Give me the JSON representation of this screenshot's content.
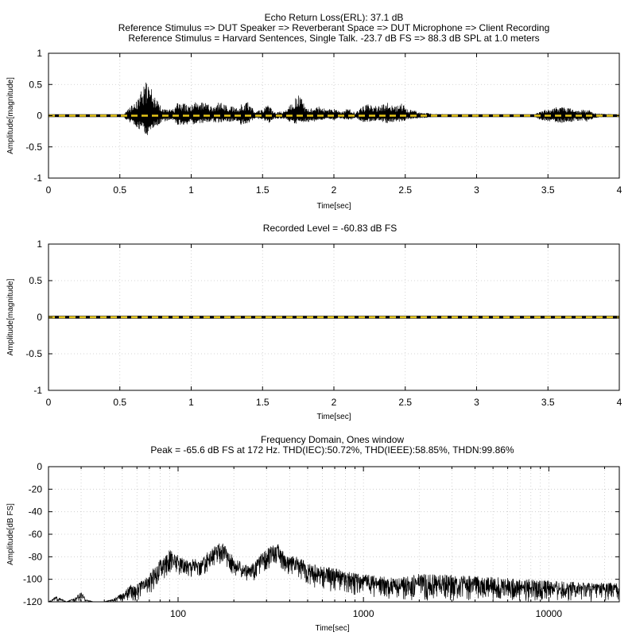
{
  "chart_data": [
    {
      "type": "line",
      "titles": [
        "Echo Return Loss(ERL): 37.1 dB",
        "Reference Stimulus => DUT Speaker => Reverberant Space => DUT Microphone => Client Recording",
        "Reference Stimulus = Harvard Sentences, Single Talk. -23.7 dB FS => 88.3 dB SPL at 1.0 meters"
      ],
      "xlabel": "Time[sec]",
      "ylabel": "Amplitude[magnitude]",
      "xlim": [
        0,
        4
      ],
      "ylim": [
        -1,
        1
      ],
      "xticks": [
        0,
        0.5,
        1,
        1.5,
        2,
        2.5,
        3,
        3.5,
        4
      ],
      "xtick_labels": [
        "0",
        "0.5",
        "1",
        "1.5",
        "2",
        "2.5",
        "3",
        "3.5",
        "4"
      ],
      "yticks": [
        1,
        0.5,
        0,
        -0.5,
        -1
      ],
      "ytick_labels": [
        "1",
        "0.5",
        "0",
        "-0.5",
        "-1"
      ],
      "grid": true,
      "series": [
        {
          "color": "#000000",
          "style": "waveform",
          "envelope": {
            "t": [
              0.0,
              0.52,
              0.55,
              0.62,
              0.66,
              0.7,
              0.74,
              0.8,
              0.84,
              0.88,
              0.9,
              0.95,
              1.0,
              1.02,
              1.05,
              1.1,
              1.14,
              1.2,
              1.27,
              1.32,
              1.35,
              1.4,
              1.45,
              1.5,
              1.54,
              1.58,
              1.65,
              1.7,
              1.76,
              1.8,
              1.86,
              1.9,
              1.95,
              2.0,
              2.05,
              2.1,
              2.15,
              2.2,
              2.25,
              2.3,
              2.37,
              2.42,
              2.48,
              2.52,
              2.58,
              2.62,
              2.7,
              2.8,
              2.85,
              3.38,
              3.45,
              3.52,
              3.6,
              3.66,
              3.72,
              3.78,
              3.82,
              3.9,
              4.0
            ],
            "pos": [
              0.0,
              0.0,
              0.1,
              0.25,
              0.45,
              0.6,
              0.35,
              0.1,
              0.1,
              0.12,
              0.2,
              0.2,
              0.15,
              0.23,
              0.2,
              0.25,
              0.15,
              0.22,
              0.15,
              0.14,
              0.18,
              0.22,
              0.08,
              0.1,
              0.18,
              0.05,
              0.08,
              0.2,
              0.35,
              0.15,
              0.12,
              0.15,
              0.1,
              0.12,
              0.06,
              0.12,
              0.05,
              0.15,
              0.2,
              0.15,
              0.22,
              0.15,
              0.2,
              0.1,
              0.08,
              0.05,
              0.03,
              0.02,
              0.0,
              0.0,
              0.08,
              0.12,
              0.15,
              0.12,
              0.08,
              0.12,
              0.04,
              0.03,
              0.02
            ],
            "neg": [
              0.0,
              0.0,
              0.08,
              0.2,
              0.25,
              0.33,
              0.2,
              0.1,
              0.08,
              0.1,
              0.15,
              0.15,
              0.13,
              0.15,
              0.13,
              0.12,
              0.1,
              0.12,
              0.1,
              0.08,
              0.15,
              0.12,
              0.05,
              0.06,
              0.13,
              0.05,
              0.05,
              0.12,
              0.14,
              0.1,
              0.1,
              0.08,
              0.05,
              0.08,
              0.04,
              0.08,
              0.04,
              0.1,
              0.1,
              0.08,
              0.12,
              0.1,
              0.1,
              0.06,
              0.05,
              0.04,
              0.02,
              0.01,
              0.0,
              0.0,
              0.07,
              0.1,
              0.12,
              0.1,
              0.08,
              0.1,
              0.04,
              0.02,
              0.02
            ]
          }
        },
        {
          "color": "#e6c619",
          "style": "yellow-black dashed",
          "y": 0
        }
      ]
    },
    {
      "type": "line",
      "titles": [
        "Recorded Level = -60.83 dB FS"
      ],
      "xlabel": "Time[sec]",
      "ylabel": "Amplitude[magnitude]",
      "xlim": [
        0,
        4
      ],
      "ylim": [
        -1,
        1
      ],
      "xticks": [
        0,
        0.5,
        1,
        1.5,
        2,
        2.5,
        3,
        3.5,
        4
      ],
      "xtick_labels": [
        "0",
        "0.5",
        "1",
        "1.5",
        "2",
        "2.5",
        "3",
        "3.5",
        "4"
      ],
      "yticks": [
        1,
        0.5,
        0,
        -0.5,
        -1
      ],
      "ytick_labels": [
        "1",
        "0.5",
        "0",
        "-0.5",
        "-1"
      ],
      "grid": true,
      "series": [
        {
          "color": "#e6c619",
          "style": "yellow-black dashed",
          "y": 0
        }
      ]
    },
    {
      "type": "line",
      "titles": [
        "Frequency Domain, Ones window",
        "Peak = -65.6 dB FS at 172 Hz. THD(IEC):50.72%, THD(IEEE):58.85%, THDN:99.86%"
      ],
      "xlabel": "Time[sec]",
      "ylabel": "Amplitude[dB FS]",
      "xscale": "log",
      "xlim": [
        20,
        24000
      ],
      "ylim": [
        -120,
        0
      ],
      "xticks": [
        100,
        1000,
        10000
      ],
      "xtick_labels": [
        "100",
        "1000",
        "10000"
      ],
      "yticks": [
        0,
        -20,
        -40,
        -60,
        -80,
        -100,
        -120
      ],
      "ytick_labels": [
        "0",
        "-20",
        "-40",
        "-60",
        "-80",
        "-100",
        "-120"
      ],
      "grid": true,
      "series": [
        {
          "color": "#000000",
          "style": "spectrum",
          "envelope": {
            "f": [
              20,
              22,
              25,
              28,
              30,
              32,
              35,
              40,
              45,
              50,
              55,
              60,
              65,
              70,
              75,
              80,
              85,
              90,
              100,
              110,
              120,
              130,
              140,
              150,
              160,
              172,
              185,
              200,
              220,
              240,
              260,
              280,
              300,
              320,
              340,
              360,
              380,
              400,
              450,
              500,
              600,
              700,
              800,
              1000,
              1200,
              1500,
              2000,
              3000,
              5000,
              8000,
              12000,
              18000,
              24000
            ],
            "top": [
              -120,
              -115,
              -120,
              -116,
              -111,
              -118,
              -120,
              -120,
              -117,
              -112,
              -105,
              -104,
              -100,
              -95,
              -88,
              -82,
              -79,
              -74,
              -78,
              -83,
              -80,
              -85,
              -78,
              -73,
              -70,
              -66,
              -73,
              -80,
              -85,
              -88,
              -84,
              -78,
              -73,
              -70,
              -67,
              -72,
              -78,
              -79,
              -80,
              -86,
              -88,
              -90,
              -92,
              -95,
              -97,
              -99,
              -95,
              -96,
              -98,
              -100,
              -102,
              -103,
              -103
            ],
            "bottom": [
              -120,
              -120,
              -120,
              -120,
              -120,
              -120,
              -120,
              -120,
              -120,
              -120,
              -120,
              -120,
              -118,
              -115,
              -110,
              -104,
              -100,
              -96,
              -98,
              -100,
              -98,
              -100,
              -97,
              -92,
              -90,
              -88,
              -92,
              -97,
              -100,
              -103,
              -101,
              -97,
              -93,
              -90,
              -89,
              -93,
              -97,
              -99,
              -103,
              -107,
              -110,
              -112,
              -114,
              -116,
              -117,
              -118,
              -120,
              -120,
              -120,
              -120,
              -120,
              -120,
              -120
            ]
          }
        }
      ]
    }
  ]
}
